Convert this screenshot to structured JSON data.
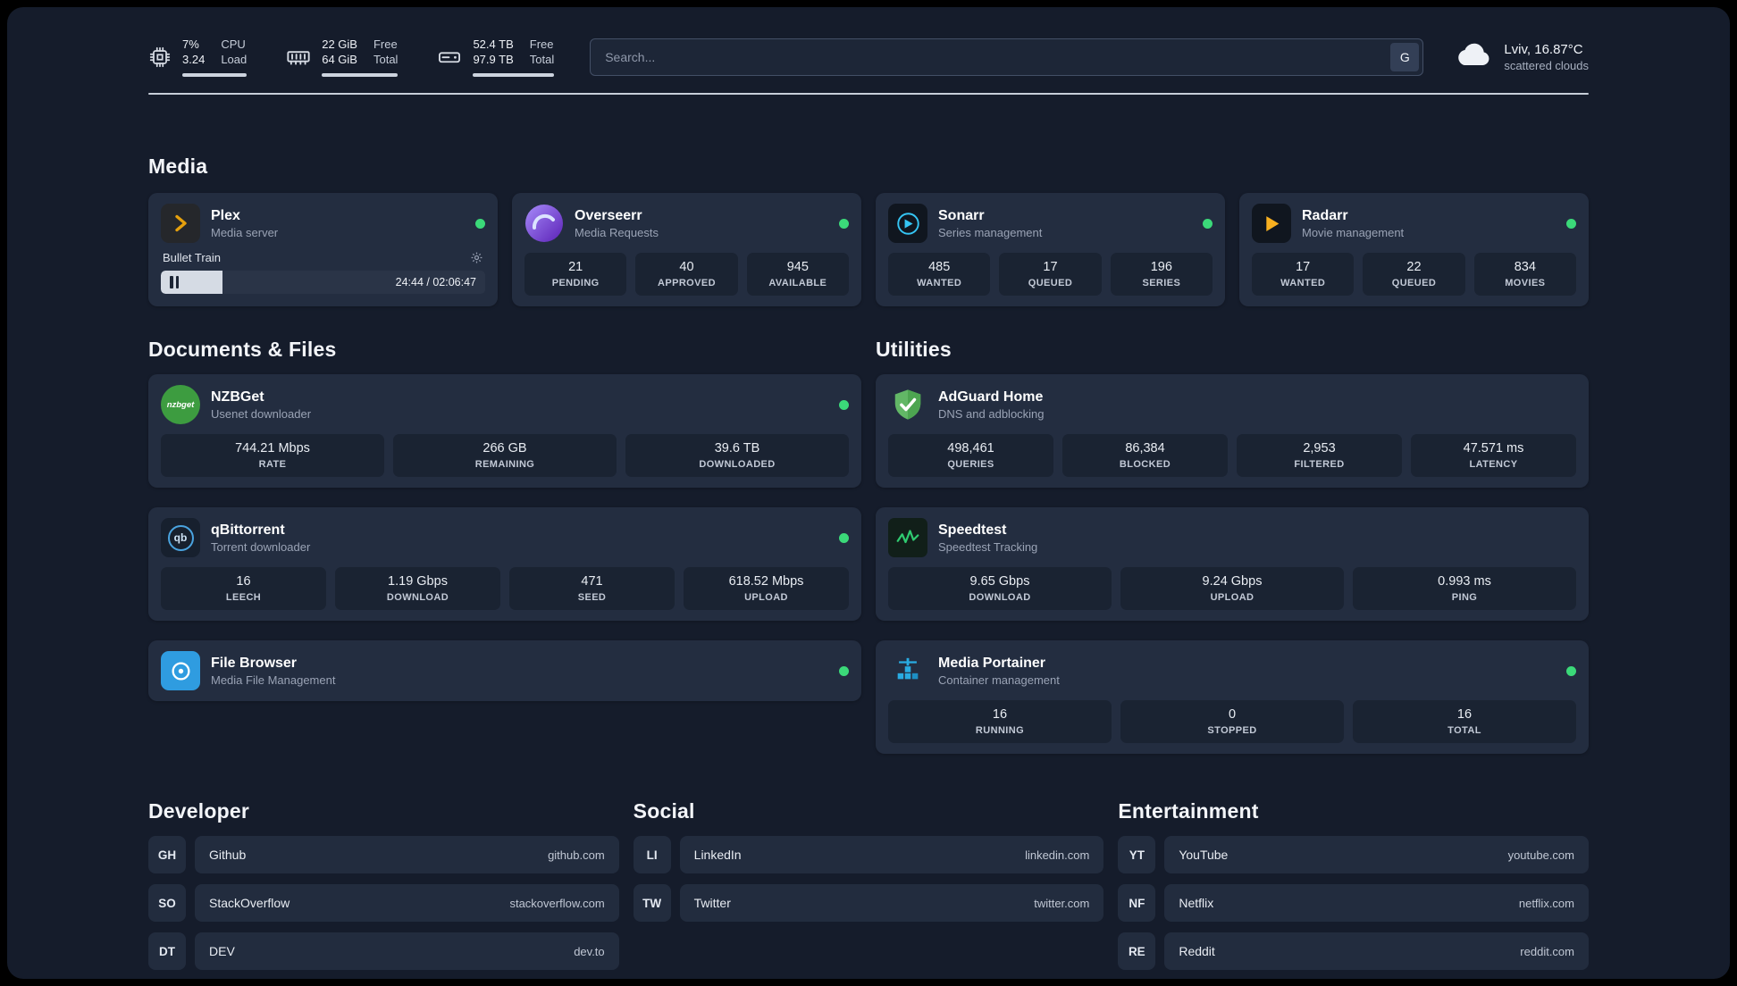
{
  "topbar": {
    "cpu": {
      "value": "7%",
      "sub": "3.24",
      "label_top": "CPU",
      "label_bottom": "Load"
    },
    "ram": {
      "value": "22 GiB",
      "sub": "64 GiB",
      "label_top": "Free",
      "label_bottom": "Total"
    },
    "disk": {
      "value": "52.4 TB",
      "sub": "97.9 TB",
      "label_top": "Free",
      "label_bottom": "Total"
    },
    "search": {
      "placeholder": "Search...",
      "provider_label": "G"
    },
    "weather": {
      "location_temp": "Lviv, 16.87°C",
      "condition": "scattered clouds"
    }
  },
  "media": {
    "title": "Media",
    "plex": {
      "name": "Plex",
      "subtitle": "Media server",
      "now_playing": "Bullet Train",
      "time": "24:44 / 02:06:47",
      "progress_pct": 19
    },
    "overseerr": {
      "name": "Overseerr",
      "subtitle": "Media Requests",
      "stats": [
        {
          "value": "21",
          "label": "PENDING"
        },
        {
          "value": "40",
          "label": "APPROVED"
        },
        {
          "value": "945",
          "label": "AVAILABLE"
        }
      ]
    },
    "sonarr": {
      "name": "Sonarr",
      "subtitle": "Series management",
      "stats": [
        {
          "value": "485",
          "label": "WANTED"
        },
        {
          "value": "17",
          "label": "QUEUED"
        },
        {
          "value": "196",
          "label": "SERIES"
        }
      ]
    },
    "radarr": {
      "name": "Radarr",
      "subtitle": "Movie management",
      "stats": [
        {
          "value": "17",
          "label": "WANTED"
        },
        {
          "value": "22",
          "label": "QUEUED"
        },
        {
          "value": "834",
          "label": "MOVIES"
        }
      ]
    }
  },
  "documents": {
    "title": "Documents & Files",
    "nzbget": {
      "name": "NZBGet",
      "subtitle": "Usenet downloader",
      "icon_text": "nzbget",
      "stats": [
        {
          "value": "744.21 Mbps",
          "label": "RATE"
        },
        {
          "value": "266 GB",
          "label": "REMAINING"
        },
        {
          "value": "39.6 TB",
          "label": "DOWNLOADED"
        }
      ]
    },
    "qbittorrent": {
      "name": "qBittorrent",
      "subtitle": "Torrent downloader",
      "icon_text": "qb",
      "stats": [
        {
          "value": "16",
          "label": "LEECH"
        },
        {
          "value": "1.19 Gbps",
          "label": "DOWNLOAD"
        },
        {
          "value": "471",
          "label": "SEED"
        },
        {
          "value": "618.52 Mbps",
          "label": "UPLOAD"
        }
      ]
    },
    "filebrowser": {
      "name": "File Browser",
      "subtitle": "Media File Management"
    }
  },
  "utilities": {
    "title": "Utilities",
    "adguard": {
      "name": "AdGuard Home",
      "subtitle": "DNS and adblocking",
      "stats": [
        {
          "value": "498,461",
          "label": "QUERIES"
        },
        {
          "value": "86,384",
          "label": "BLOCKED"
        },
        {
          "value": "2,953",
          "label": "FILTERED"
        },
        {
          "value": "47.571 ms",
          "label": "LATENCY"
        }
      ]
    },
    "speedtest": {
      "name": "Speedtest",
      "subtitle": "Speedtest Tracking",
      "stats": [
        {
          "value": "9.65 Gbps",
          "label": "DOWNLOAD"
        },
        {
          "value": "9.24 Gbps",
          "label": "UPLOAD"
        },
        {
          "value": "0.993 ms",
          "label": "PING"
        }
      ]
    },
    "portainer": {
      "name": "Media Portainer",
      "subtitle": "Container management",
      "stats": [
        {
          "value": "16",
          "label": "RUNNING"
        },
        {
          "value": "0",
          "label": "STOPPED"
        },
        {
          "value": "16",
          "label": "TOTAL"
        }
      ]
    }
  },
  "links": {
    "developer": {
      "title": "Developer",
      "items": [
        {
          "badge": "GH",
          "name": "Github",
          "url": "github.com"
        },
        {
          "badge": "SO",
          "name": "StackOverflow",
          "url": "stackoverflow.com"
        },
        {
          "badge": "DT",
          "name": "DEV",
          "url": "dev.to"
        }
      ]
    },
    "social": {
      "title": "Social",
      "items": [
        {
          "badge": "LI",
          "name": "LinkedIn",
          "url": "linkedin.com"
        },
        {
          "badge": "TW",
          "name": "Twitter",
          "url": "twitter.com"
        }
      ]
    },
    "entertainment": {
      "title": "Entertainment",
      "items": [
        {
          "badge": "YT",
          "name": "YouTube",
          "url": "youtube.com"
        },
        {
          "badge": "NF",
          "name": "Netflix",
          "url": "netflix.com"
        },
        {
          "badge": "RE",
          "name": "Reddit",
          "url": "reddit.com"
        }
      ]
    }
  },
  "colors": {
    "page_bg": "#151c2b",
    "card_bg": "#232d40",
    "tile_bg": "#1a2332",
    "status_online": "#3bd979",
    "plex_accent": "#e5a00d",
    "sonarr_accent": "#35c5f4",
    "radarr_accent": "#f8b020",
    "adguard_accent": "#5fb760",
    "portainer_accent": "#29abe2",
    "speedtest_accent": "#2fca70",
    "nzbget_accent": "#3d9c40",
    "qbittorrent_accent": "#4aa3df",
    "filebrowser_accent": "#2f9ce0",
    "overseerr_accent": "#6d28d9"
  }
}
